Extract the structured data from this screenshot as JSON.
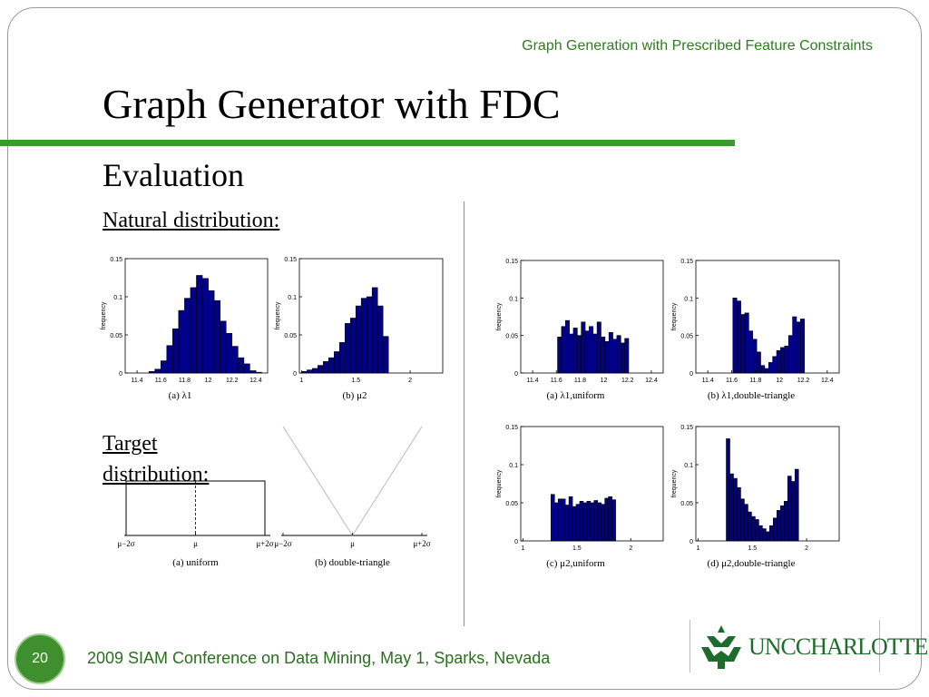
{
  "slide": {
    "header": "Graph Generation with Prescribed Feature Constraints",
    "title": "Graph Generator with FDC",
    "subtitle": "Evaluation",
    "natural_label": "Natural distribution:",
    "target_label": "Target distribution:",
    "page_number": "20",
    "footer": "2009 SIAM Conference on Data Mining, May 1, Sparks, Nevada",
    "logo_text": "UNCCHARLOTTE"
  },
  "colors": {
    "bar": "#00008b",
    "accent": "#3a9a2e"
  },
  "chart_data": [
    {
      "id": "nat-lambda",
      "type": "bar",
      "caption": "(a)  λ1",
      "ylabel": "frequency",
      "xlim": [
        11.3,
        12.5
      ],
      "ylim": [
        0,
        0.15
      ],
      "xticks": [
        "11.4",
        "11.6",
        "11.8",
        "12",
        "12.2",
        "12.4"
      ],
      "xtick_values": [
        11.4,
        11.6,
        11.8,
        12,
        12.2,
        12.4
      ],
      "yticks": [
        "0",
        "0.05",
        "0.1",
        "0.15"
      ],
      "ytick_values": [
        0,
        0.05,
        0.1,
        0.15
      ],
      "bin_start": 11.5,
      "bin_width": 0.05,
      "values": [
        0.002,
        0.005,
        0.016,
        0.036,
        0.058,
        0.082,
        0.098,
        0.112,
        0.128,
        0.124,
        0.108,
        0.095,
        0.068,
        0.052,
        0.035,
        0.02,
        0.012,
        0.003,
        0.001
      ]
    },
    {
      "id": "nat-mu",
      "type": "bar",
      "caption": "(b)  μ2",
      "ylabel": "frequency",
      "xlim": [
        0.98,
        2.3
      ],
      "ylim": [
        0,
        0.15
      ],
      "xticks": [
        "1",
        "1.5",
        "2"
      ],
      "xtick_values": [
        1,
        1.5,
        2
      ],
      "yticks": [
        "0",
        "0.05",
        "0.1",
        "0.15"
      ],
      "ytick_values": [
        0,
        0.05,
        0.1,
        0.15
      ],
      "bin_start": 1.0,
      "bin_width": 0.05,
      "values": [
        0.002,
        0.004,
        0.006,
        0.01,
        0.015,
        0.02,
        0.028,
        0.04,
        0.065,
        0.072,
        0.088,
        0.098,
        0.1,
        0.112,
        0.088,
        0.048
      ]
    },
    {
      "id": "lambda-uniform",
      "type": "bar",
      "caption": "(a)  λ1,uniform",
      "ylabel": "frequency",
      "xlim": [
        11.3,
        12.5
      ],
      "ylim": [
        0,
        0.15
      ],
      "xticks": [
        "11.4",
        "11.6",
        "11.8",
        "12",
        "12.2",
        "12.4"
      ],
      "xtick_values": [
        11.4,
        11.6,
        11.8,
        12,
        12.2,
        12.4
      ],
      "yticks": [
        "0",
        "0.05",
        "0.1",
        "0.15"
      ],
      "ytick_values": [
        0,
        0.05,
        0.1,
        0.15
      ],
      "bin_start": 11.61,
      "bin_width": 0.0333,
      "values": [
        0.048,
        0.062,
        0.07,
        0.052,
        0.06,
        0.05,
        0.068,
        0.056,
        0.062,
        0.052,
        0.068,
        0.048,
        0.042,
        0.054,
        0.045,
        0.05,
        0.04,
        0.046
      ]
    },
    {
      "id": "lambda-double",
      "type": "bar",
      "caption": "(b)  λ1,double-triangle",
      "ylabel": "frequency",
      "xlim": [
        11.3,
        12.5
      ],
      "ylim": [
        0,
        0.15
      ],
      "xticks": [
        "11.4",
        "11.6",
        "11.8",
        "12",
        "12.2",
        "12.4"
      ],
      "xtick_values": [
        11.4,
        11.6,
        11.8,
        12,
        12.2,
        12.4
      ],
      "yticks": [
        "0",
        "0.05",
        "0.1",
        "0.15"
      ],
      "ytick_values": [
        0,
        0.05,
        0.1,
        0.15
      ],
      "bin_start": 11.61,
      "bin_width": 0.0333,
      "values": [
        0.1,
        0.096,
        0.078,
        0.08,
        0.056,
        0.045,
        0.028,
        0.01,
        0.006,
        0.014,
        0.022,
        0.03,
        0.034,
        0.036,
        0.05,
        0.075,
        0.068,
        0.072
      ]
    },
    {
      "id": "mu-uniform",
      "type": "bar",
      "caption": "(c)  μ2,uniform",
      "ylabel": "frequency",
      "xlim": [
        0.98,
        2.3
      ],
      "ylim": [
        0,
        0.15
      ],
      "xticks": [
        "1",
        "1.5",
        "2"
      ],
      "xtick_values": [
        1,
        1.5,
        2
      ],
      "yticks": [
        "0",
        "0.05",
        "0.1",
        "0.15"
      ],
      "ytick_values": [
        0,
        0.05,
        0.1,
        0.15
      ],
      "bin_start": 1.26,
      "bin_width": 0.0333,
      "values": [
        0.061,
        0.05,
        0.055,
        0.055,
        0.047,
        0.058,
        0.045,
        0.048,
        0.052,
        0.05,
        0.052,
        0.05,
        0.053,
        0.05,
        0.048,
        0.056,
        0.058,
        0.054
      ]
    },
    {
      "id": "mu-double",
      "type": "bar",
      "caption": "(d)  μ2,double-triangle",
      "ylabel": "frequency",
      "xlim": [
        0.98,
        2.3
      ],
      "ylim": [
        0,
        0.15
      ],
      "xticks": [
        "1",
        "1.5",
        "2"
      ],
      "xtick_values": [
        1,
        1.5,
        2
      ],
      "yticks": [
        "0",
        "0.05",
        "0.1",
        "0.15"
      ],
      "ytick_values": [
        0,
        0.05,
        0.1,
        0.15
      ],
      "bin_start": 1.26,
      "bin_width": 0.0333,
      "values": [
        0.134,
        0.088,
        0.082,
        0.07,
        0.055,
        0.048,
        0.038,
        0.032,
        0.028,
        0.02,
        0.016,
        0.012,
        0.02,
        0.03,
        0.04,
        0.046,
        0.052,
        0.085,
        0.078,
        0.094
      ]
    },
    {
      "id": "target-uniform",
      "type": "line",
      "caption": "(a)  uniform",
      "xticks": [
        "μ−2σ",
        "μ",
        "μ+2σ"
      ],
      "xtick_values": [
        -2,
        0,
        2
      ],
      "x": [
        -2,
        -2,
        2,
        2
      ],
      "y": [
        0,
        1,
        1,
        0
      ]
    },
    {
      "id": "target-double",
      "type": "line",
      "caption": "(b)  double-triangle",
      "xticks": [
        "μ−2σ",
        "μ",
        "μ+2σ"
      ],
      "xtick_values": [
        -2,
        0,
        2
      ],
      "x": [
        -2,
        0,
        2
      ],
      "y": [
        1,
        0,
        1
      ]
    }
  ]
}
